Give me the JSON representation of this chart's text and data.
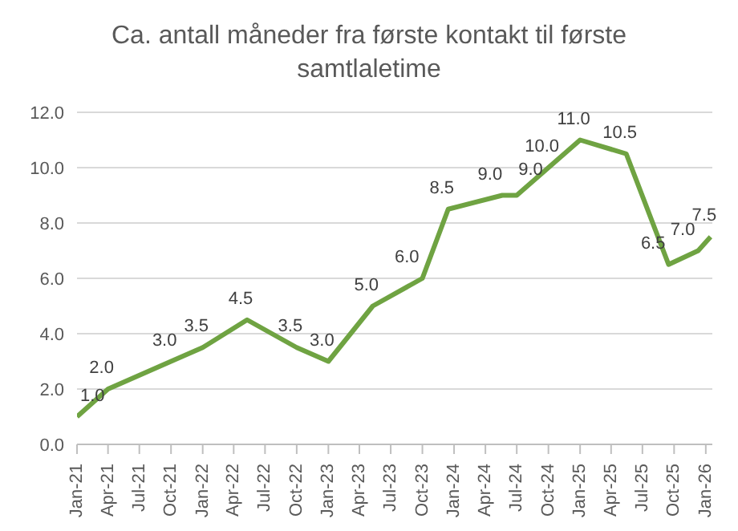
{
  "chart_data": {
    "type": "line",
    "title": "Ca. antall måneder fra første kontakt til første samtlaletime",
    "x": [
      "2021-01-01",
      "2021-04-01",
      "2021-10-01",
      "2022-01-01",
      "2022-05-10",
      "2022-10-01",
      "2023-01-01",
      "2023-05-10",
      "2023-10-01",
      "2023-12-15",
      "2024-05-20",
      "2024-07-01",
      "2024-10-01",
      "2025-01-01",
      "2025-05-15",
      "2025-09-15",
      "2025-12-10",
      "2026-01-15"
    ],
    "series": [
      {
        "color": "#6fa342",
        "values": [
          1.0,
          2.0,
          3.0,
          3.5,
          4.5,
          3.5,
          3.0,
          5.0,
          6.0,
          8.5,
          9.0,
          9.0,
          10.0,
          11.0,
          10.5,
          6.5,
          7.0,
          7.5
        ],
        "value_labels": [
          "1.0",
          "2.0",
          "3.0",
          "3.5",
          "4.5",
          "3.5",
          "3.0",
          "5.0",
          "6.0",
          "8.5",
          "9.0",
          "9.0",
          "10.0",
          "11.0",
          "10.5",
          "6.5",
          "7.0",
          "7.5"
        ]
      }
    ],
    "xlim": [
      "2021-01-01",
      "2026-01-20"
    ],
    "xticks": [
      {
        "value": "2021-01-01",
        "label": "Jan-21"
      },
      {
        "value": "2021-04-01",
        "label": "Apr-21"
      },
      {
        "value": "2021-07-01",
        "label": "Jul-21"
      },
      {
        "value": "2021-10-01",
        "label": "Oct-21"
      },
      {
        "value": "2022-01-01",
        "label": "Jan-22"
      },
      {
        "value": "2022-04-01",
        "label": "Apr-22"
      },
      {
        "value": "2022-07-01",
        "label": "Jul-22"
      },
      {
        "value": "2022-10-01",
        "label": "Oct-22"
      },
      {
        "value": "2023-01-01",
        "label": "Jan-23"
      },
      {
        "value": "2023-04-01",
        "label": "Apr-23"
      },
      {
        "value": "2023-07-01",
        "label": "Jul-23"
      },
      {
        "value": "2023-10-01",
        "label": "Oct-23"
      },
      {
        "value": "2024-01-01",
        "label": "Jan-24"
      },
      {
        "value": "2024-04-01",
        "label": "Apr-24"
      },
      {
        "value": "2024-07-01",
        "label": "Jul-24"
      },
      {
        "value": "2024-10-01",
        "label": "Oct-24"
      },
      {
        "value": "2025-01-01",
        "label": "Jan-25"
      },
      {
        "value": "2025-04-01",
        "label": "Apr-25"
      },
      {
        "value": "2025-07-01",
        "label": "Jul-25"
      },
      {
        "value": "2025-10-01",
        "label": "Oct-25"
      },
      {
        "value": "2026-01-01",
        "label": "Jan-26"
      }
    ],
    "ylim": [
      0,
      12
    ],
    "yticks": [
      {
        "value": 0,
        "label": "0.0"
      },
      {
        "value": 2,
        "label": "2.0"
      },
      {
        "value": 4,
        "label": "4.0"
      },
      {
        "value": 6,
        "label": "6.0"
      },
      {
        "value": 8,
        "label": "8.0"
      },
      {
        "value": 10,
        "label": "10.0"
      },
      {
        "value": 12,
        "label": "12.0"
      }
    ],
    "grid": "y",
    "marker": "none",
    "line_style": "solid"
  }
}
